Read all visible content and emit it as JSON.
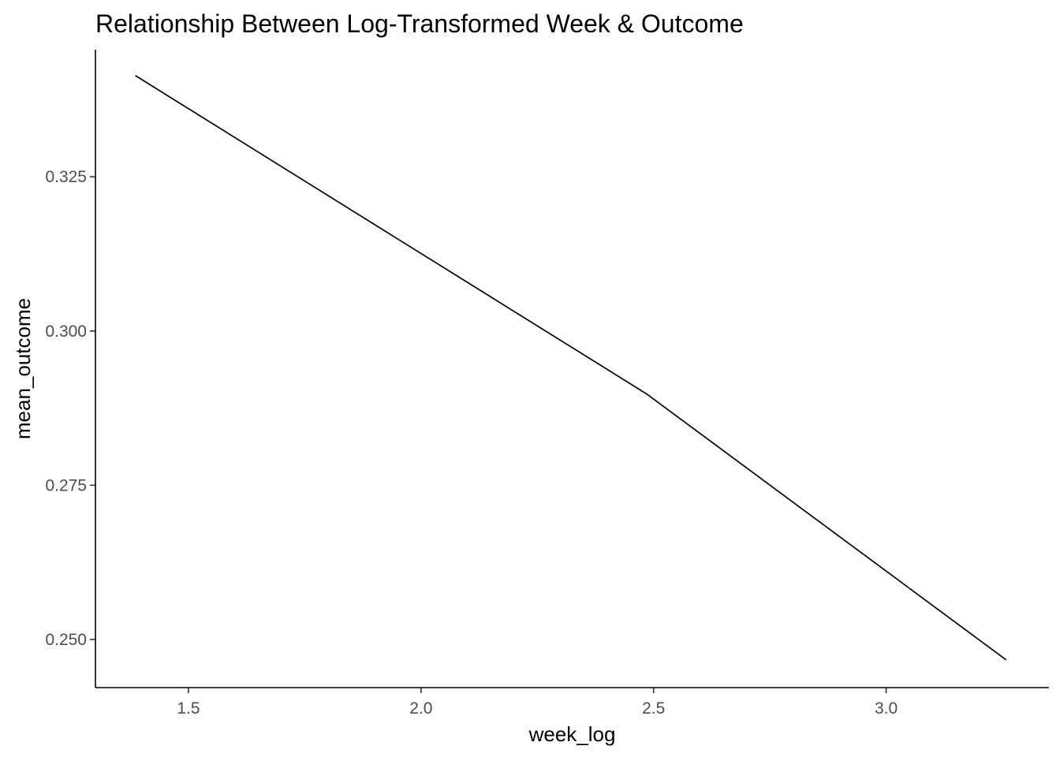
{
  "chart_data": {
    "type": "line",
    "title": "Relationship Between Log-Transformed Week & Outcome",
    "xlabel": "week_log",
    "ylabel": "mean_outcome",
    "xlim": [
      1.3,
      3.35
    ],
    "ylim": [
      0.2422,
      0.3456
    ],
    "xticks": [
      1.5,
      2.0,
      2.5,
      3.0
    ],
    "xtick_labels": [
      "1.5",
      "2.0",
      "2.5",
      "3.0"
    ],
    "yticks": [
      0.25,
      0.275,
      0.3,
      0.325
    ],
    "ytick_labels": [
      "0.250",
      "0.275",
      "0.300",
      "0.325"
    ],
    "grid": false,
    "legend": "none",
    "series": [
      {
        "x": [
          1.386,
          2.485,
          3.258
        ],
        "y": [
          0.3414,
          0.2898,
          0.2467
        ],
        "color": "#000000"
      }
    ]
  }
}
